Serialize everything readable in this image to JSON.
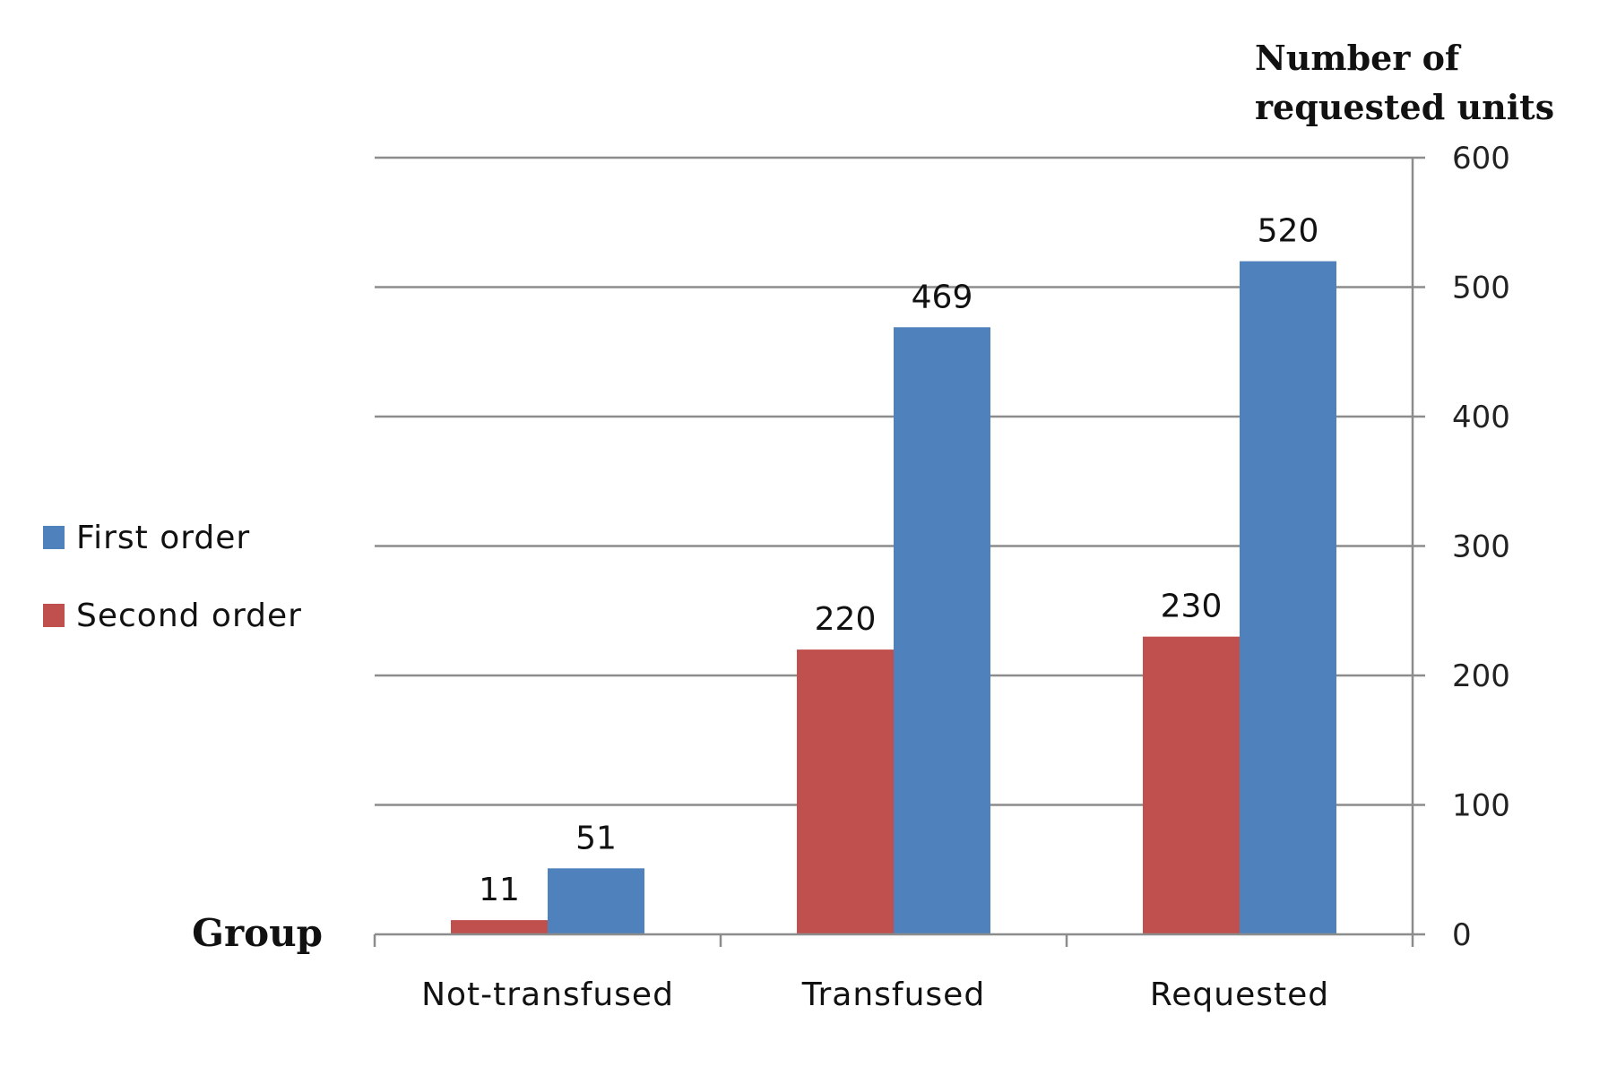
{
  "chart_data": {
    "type": "bar",
    "categories": [
      "Not-transfused",
      "Transfused",
      "Requested"
    ],
    "series": [
      {
        "name": "Second order",
        "values": [
          11,
          220,
          230
        ],
        "color": "#c0504d"
      },
      {
        "name": "First order",
        "values": [
          51,
          469,
          520
        ],
        "color": "#4f81bd"
      }
    ],
    "xlabel": "Group",
    "ylabel_lines": [
      "Number of",
      "requested units"
    ],
    "ylim": [
      0,
      600
    ],
    "yticks": [
      0,
      100,
      200,
      300,
      400,
      500,
      600
    ],
    "y_axis_side": "right",
    "grid": true,
    "legend_position": "left",
    "legend": [
      {
        "label": "First order",
        "color": "#4f81bd"
      },
      {
        "label": "Second order",
        "color": "#c0504d"
      }
    ]
  }
}
